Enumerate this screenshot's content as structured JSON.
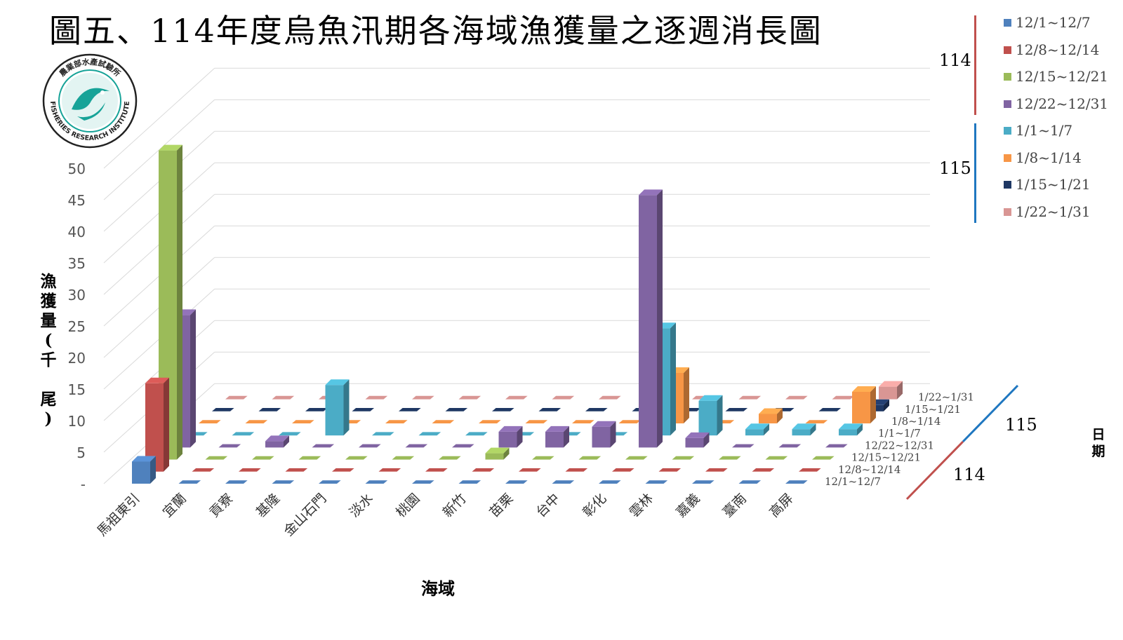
{
  "title": "圖五、114年度烏魚汛期各海域漁獲量之逐週消長圖",
  "logo": {
    "text_top": "農業部水產試驗所",
    "text_bottom": "FISHERIES RESEARCH INSTITUTE"
  },
  "colors": {
    "text": "#000000",
    "axis_text": "#555555",
    "grid": "#d9d9d9",
    "bracket_114": "#c0504d",
    "bracket_115": "#1f77c0"
  },
  "chart_data": {
    "type": "bar",
    "variant": "3d-clustered-column",
    "title": "圖五、114年度烏魚汛期各海域漁獲量之逐週消長圖",
    "xlabel": "海域",
    "ylabel": "漁獲量(千尾)",
    "zlabel": "日期",
    "ylim": [
      0,
      50
    ],
    "yticks": [
      "-",
      "5",
      "10",
      "15",
      "20",
      "25",
      "30",
      "35",
      "40",
      "45",
      "50"
    ],
    "grid": true,
    "legend_position": "top-right",
    "categories": [
      "馬祖東引",
      "宜蘭",
      "貢寮",
      "基隆",
      "金山石門",
      "淡水",
      "桃園",
      "新竹",
      "苗栗",
      "台中",
      "彰化",
      "雲林",
      "嘉義",
      "臺南",
      "高屏"
    ],
    "series": [
      {
        "name": "12/1~12/7",
        "group": "114",
        "color": "#4f81bd",
        "values": [
          3.5,
          0,
          0,
          0,
          0,
          0,
          0,
          0,
          0,
          0,
          0,
          0,
          0,
          0,
          0
        ]
      },
      {
        "name": "12/8~12/14",
        "group": "114",
        "color": "#c0504d",
        "values": [
          14,
          0,
          0,
          0,
          0,
          0,
          0,
          0,
          0,
          0,
          0,
          0,
          0,
          0,
          0
        ]
      },
      {
        "name": "12/15~12/21",
        "group": "114",
        "color": "#9bbb59",
        "values": [
          49,
          0,
          0,
          0,
          0,
          0,
          0,
          1,
          0,
          0,
          0,
          0,
          0,
          0,
          0
        ]
      },
      {
        "name": "12/22~12/31",
        "group": "114",
        "color": "#8064a2",
        "values": [
          21,
          0,
          1,
          0,
          0,
          0,
          0,
          2.5,
          2.5,
          3.3,
          40,
          1.5,
          0,
          0,
          0
        ]
      },
      {
        "name": "1/1~1/7",
        "group": "115",
        "color": "#4bacc6",
        "values": [
          0,
          0,
          0,
          8,
          0,
          0,
          0,
          0,
          0,
          0,
          17,
          5.5,
          1,
          1,
          1
        ]
      },
      {
        "name": "1/8~1/14",
        "group": "115",
        "color": "#f79646",
        "values": [
          0,
          0,
          0,
          0,
          0,
          0,
          0,
          0,
          0,
          0,
          8,
          0,
          1.5,
          0,
          5
        ]
      },
      {
        "name": "1/15~1/21",
        "group": "115",
        "color": "#1f3864",
        "values": [
          0,
          0,
          0,
          0,
          0,
          0,
          0,
          0,
          0,
          0,
          0,
          0,
          0,
          0,
          1
        ]
      },
      {
        "name": "1/22~1/31",
        "group": "115",
        "color": "#d99694",
        "values": [
          0,
          0,
          0,
          0,
          0,
          0,
          0,
          0,
          0,
          0,
          0,
          0,
          0,
          0,
          2
        ]
      }
    ],
    "legend_groups": [
      {
        "year": "114",
        "items": [
          "12/1~12/7",
          "12/8~12/14",
          "12/15~12/21",
          "12/22~12/31"
        ]
      },
      {
        "year": "115",
        "items": [
          "1/1~1/7",
          "1/8~1/14",
          "1/15~1/21",
          "1/22~1/31"
        ]
      }
    ]
  }
}
